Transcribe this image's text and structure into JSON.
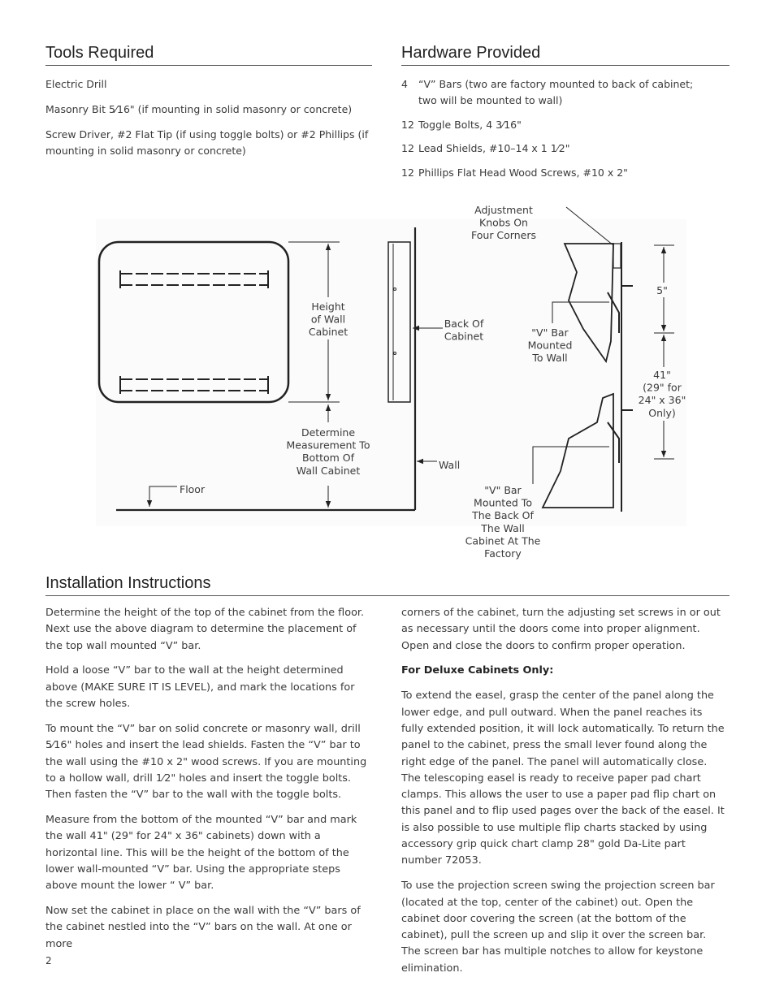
{
  "tools": {
    "title": "Tools Required",
    "items": [
      "Electric Drill",
      "Masonry Bit 5⁄16\" (if mounting in solid masonry or concrete)",
      "Screw Driver, #2 Flat Tip (if using toggle bolts) or #2 Phillips (if mounting in solid masonry or concrete)"
    ]
  },
  "hardware": {
    "title": "Hardware Provided",
    "items": [
      {
        "qty": "4",
        "lines": [
          "“V” Bars (two are factory mounted to back of cabinet;",
          "two will be mounted to wall)"
        ]
      },
      {
        "qty": "12",
        "lines": [
          "Toggle Bolts, 4 3⁄16\""
        ]
      },
      {
        "qty": "12",
        "lines": [
          "Lead Shields, #10–14 x 1 1⁄2\""
        ]
      },
      {
        "qty": "12",
        "lines": [
          "Phillips Flat Head Wood Screws, #10 x 2\""
        ]
      }
    ]
  },
  "diagram": {
    "labels": [
      [
        "Adjustment",
        "Knobs On",
        "Four Corners"
      ],
      [
        "Height",
        "of Wall",
        "Cabinet"
      ],
      [
        "Back Of",
        "Cabinet"
      ],
      [
        "\"V\" Bar",
        "Mounted",
        "To Wall"
      ],
      [
        "5\""
      ],
      [
        "41\"",
        "(29\" for",
        "24\" x 36\"",
        "Only)"
      ],
      [
        "Determine",
        "Measurement To",
        "Bottom Of",
        "Wall Cabinet"
      ],
      [
        "Wall"
      ],
      [
        "Floor"
      ],
      [
        "\"V\" Bar",
        "Mounted To",
        "The Back Of",
        "The Wall",
        "Cabinet At The",
        "Factory"
      ]
    ]
  },
  "installation": {
    "title": "Installation Instructions",
    "left": [
      "Determine the height of the top of the cabinet from the floor. Next use the above diagram to determine the placement of the top wall mounted “V” bar.",
      "Hold a loose “V” bar to the wall at the height determined above (MAKE SURE IT IS LEVEL), and mark the locations for the screw holes.",
      "To mount the “V” bar on solid concrete or masonry wall, drill 5⁄16\" holes and insert the lead shields. Fasten the “V” bar to the wall using the #10 x 2\" wood screws. If you are mounting to a hollow wall, drill 1⁄2\" holes and insert the toggle bolts. Then fasten the “V” bar to the wall with the toggle bolts.",
      "Measure from the bottom of the mounted “V” bar and mark the wall 41\" (29\" for 24\" x 36\" cabinets) down with a horizontal line. This will be the height of the bottom of the lower wall-mounted “V” bar. Using the appropriate steps above mount the lower “ V” bar.",
      "Now set the cabinet in place on the wall with the “V” bars of the cabinet nestled into the “V” bars on the wall. At one or more"
    ],
    "right_top": "corners of the cabinet, turn the adjusting set screws in or out as necessary until the doors come into proper alignment. Open and close the doors to confirm proper operation.",
    "deluxe_heading": "For Deluxe Cabinets Only:",
    "right": [
      "To extend the easel, grasp the center of the panel along the lower edge, and pull outward. When the panel reaches its fully extended position, it will lock automatically. To return the panel to the cabinet, press the small lever found along the right edge of the panel. The panel will automatically close. The telescoping easel is ready to receive paper pad chart clamps. This allows the user to use a paper pad flip chart on this panel and to flip used pages over the back of the easel. It is also possible to use multiple flip charts stacked by using accessory grip quick chart clamp 28\" gold Da-Lite part number 72053.",
      "To use the projection screen swing the projection screen bar (located at the top, center of the cabinet) out. Open the cabinet door covering the screen (at the bottom of the cabinet), pull the screen up and slip it over the screen bar. The screen bar has multiple notches to allow for keystone elimination."
    ]
  },
  "page_number": "2"
}
